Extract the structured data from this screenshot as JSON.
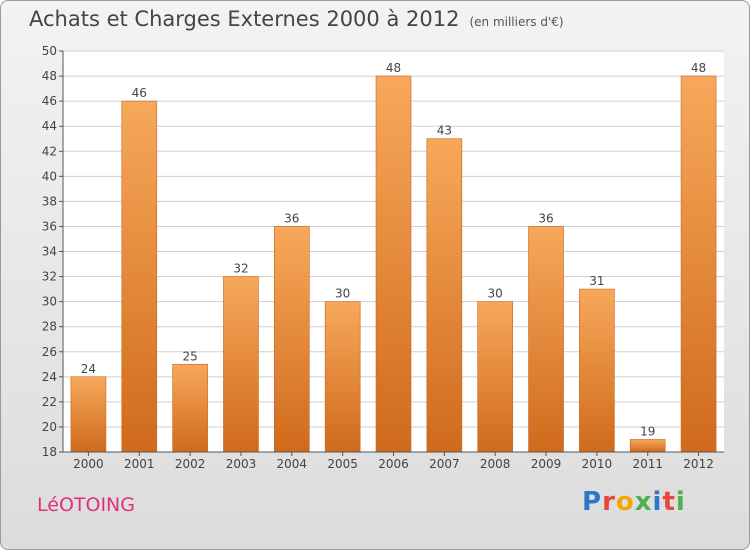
{
  "title": "Achats et Charges Externes 2000 à 2012",
  "subtitle": "(en milliers d'€)",
  "town": "LéOTOING",
  "logo": {
    "text": "Proxiti",
    "letter_colors": [
      "#2a78c8",
      "#e8453c",
      "#f2a800",
      "#4caf50",
      "#2a78c8",
      "#e8453c",
      "#4caf50"
    ]
  },
  "colors": {
    "bar_light": "#f7a85a",
    "bar_dark": "#d06a1c",
    "grid": "#cfcfcf",
    "axis": "#555555",
    "text": "#444444",
    "town": "#e0307a"
  },
  "chart_data": {
    "type": "bar",
    "title": "Achats et Charges Externes 2000 à 2012",
    "subtitle": "(en milliers d'€)",
    "categories": [
      "2000",
      "2001",
      "2002",
      "2003",
      "2004",
      "2005",
      "2006",
      "2007",
      "2008",
      "2009",
      "2010",
      "2011",
      "2012"
    ],
    "values": [
      24,
      46,
      25,
      32,
      36,
      30,
      48,
      43,
      30,
      36,
      31,
      19,
      48
    ],
    "data_labels": [
      "24",
      "46",
      "25",
      "32",
      "36",
      "30",
      "48",
      "43",
      "30",
      "36",
      "31",
      "19",
      "48"
    ],
    "ylim": [
      18,
      50
    ],
    "yticks": [
      18,
      20,
      22,
      24,
      26,
      28,
      30,
      32,
      34,
      36,
      38,
      40,
      42,
      44,
      46,
      48,
      50
    ],
    "grid": true,
    "legend": "none"
  }
}
